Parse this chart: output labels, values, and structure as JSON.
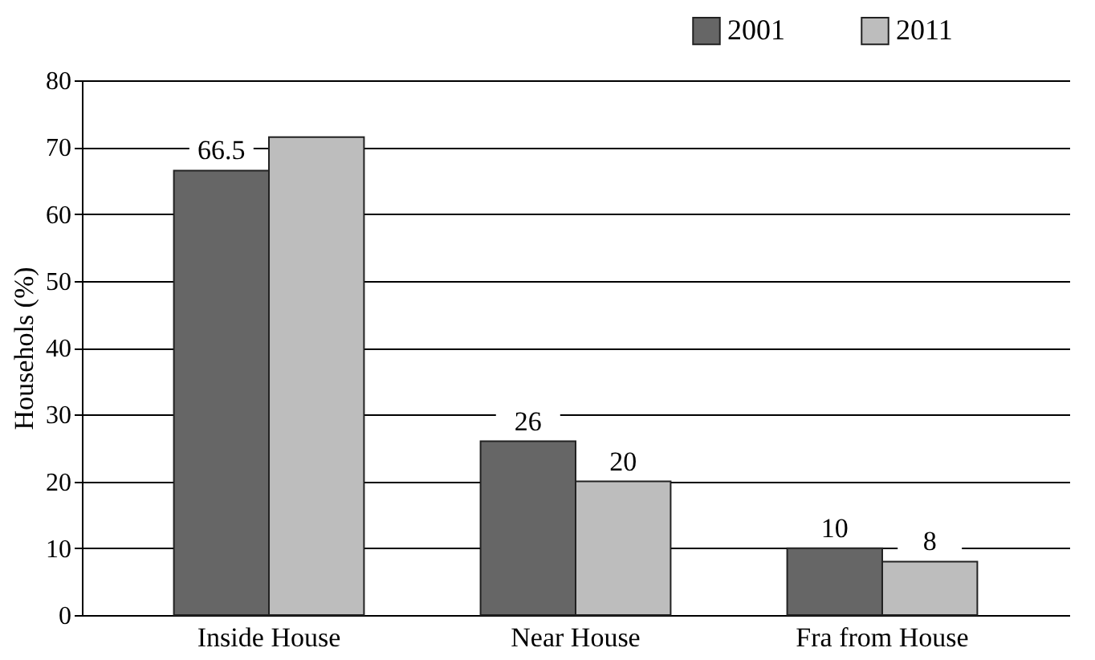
{
  "chart_data": {
    "type": "bar",
    "ylabel": "Househols (%)",
    "categories": [
      "Inside House",
      "Near House",
      "Fra from House"
    ],
    "series": [
      {
        "name": "2001",
        "color": "#666666",
        "values": [
          66.5,
          26,
          10
        ],
        "value_labels": [
          "66.5",
          "26",
          "10"
        ]
      },
      {
        "name": "2011",
        "color": "#bdbdbd",
        "values": [
          71.5,
          20,
          8
        ],
        "value_labels": [
          null,
          "20",
          "8"
        ]
      }
    ],
    "ylim": [
      0,
      80
    ],
    "yticks": [
      0,
      10,
      20,
      30,
      40,
      50,
      60,
      70,
      80
    ],
    "grid": "y",
    "legend": "top right"
  }
}
